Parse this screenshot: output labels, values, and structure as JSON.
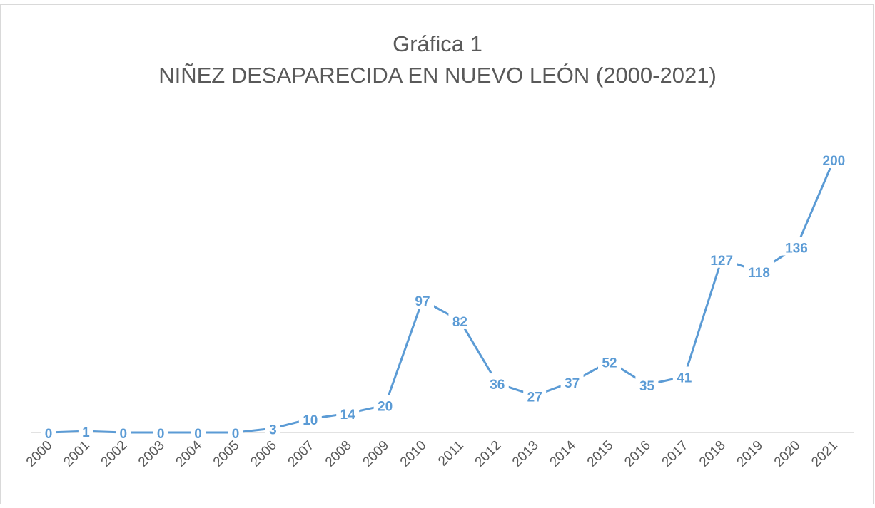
{
  "chart_data": {
    "type": "line",
    "title": "Gráfica 1",
    "subtitle": "NIÑEZ DESAPARECIDA EN NUEVO LEÓN (2000-2021)",
    "xlabel": "",
    "ylabel": "",
    "categories": [
      "2000",
      "2001",
      "2002",
      "2003",
      "2004",
      "2005",
      "2006",
      "2007",
      "2008",
      "2009",
      "2010",
      "2011",
      "2012",
      "2013",
      "2014",
      "2015",
      "2016",
      "2017",
      "2018",
      "2019",
      "2020",
      "2021"
    ],
    "values": [
      0,
      1,
      0,
      0,
      0,
      0,
      3,
      10,
      14,
      20,
      97,
      82,
      36,
      27,
      37,
      52,
      35,
      41,
      127,
      118,
      136,
      200
    ],
    "ylim": [
      0,
      200
    ],
    "grid": false,
    "legend": "none",
    "data_labels": true,
    "colors": {
      "line": "#5B9BD5",
      "text": "#595959",
      "axis": "#D9D9D9"
    }
  }
}
